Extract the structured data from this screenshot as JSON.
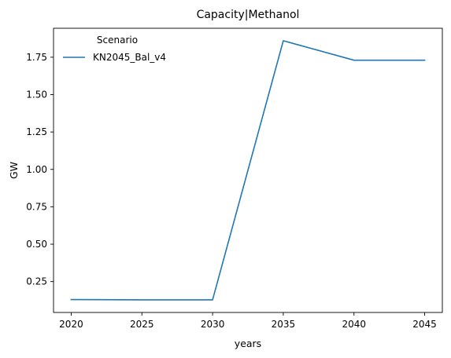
{
  "chart_data": {
    "type": "line",
    "title": "Capacity|Methanol",
    "xlabel": "years",
    "ylabel": "GW",
    "x": [
      2020,
      2025,
      2030,
      2035,
      2040,
      2045
    ],
    "xticks": [
      "2020",
      "2025",
      "2030",
      "2035",
      "2040",
      "2045"
    ],
    "xlim": [
      2018.75,
      2046.25
    ],
    "yticks": [
      "0.25",
      "0.50",
      "0.75",
      "1.00",
      "1.25",
      "1.50",
      "1.75"
    ],
    "ylim": [
      0.0435,
      1.9435
    ],
    "legend": {
      "title": "Scenario",
      "placement": "upper left"
    },
    "series": [
      {
        "name": "KN2045_Bal_v4",
        "color": "#1f77b4",
        "values": [
          0.13,
          0.128,
          0.128,
          1.86,
          1.73,
          1.73
        ]
      }
    ]
  }
}
